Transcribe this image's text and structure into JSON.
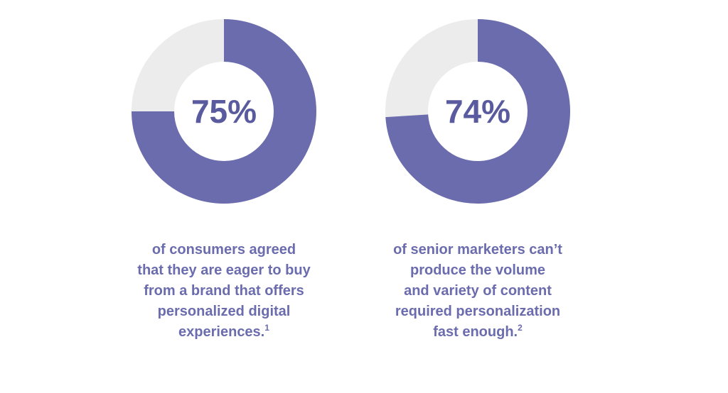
{
  "chart_data": [
    {
      "type": "donut",
      "values": [
        75
      ],
      "value_labels": [
        "75%"
      ],
      "color": "#6b6cae",
      "track_color": "#ececec",
      "caption": [
        "of consumers agreed",
        "that they are eager to buy",
        "from a brand that offers",
        "personalized digital",
        "experiences."
      ],
      "footnote": "1"
    },
    {
      "type": "donut",
      "values": [
        74
      ],
      "value_labels": [
        "74%"
      ],
      "color": "#6b6cae",
      "track_color": "#ececec",
      "caption": [
        "of senior marketers can’t",
        "produce the volume",
        "and variety of content",
        "required personalization",
        "fast enough."
      ],
      "footnote": "2"
    }
  ]
}
